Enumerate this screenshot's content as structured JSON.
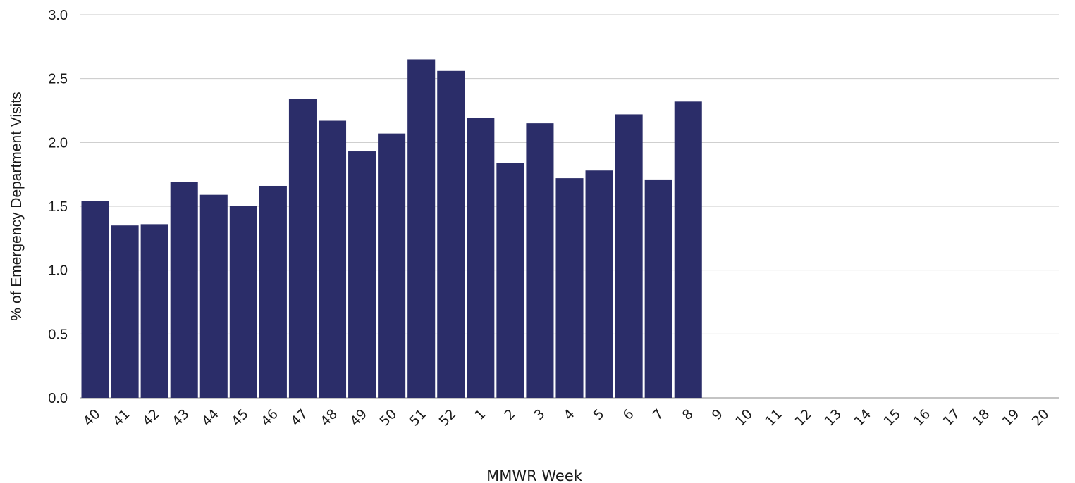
{
  "chart_data": {
    "type": "bar",
    "title": "",
    "xlabel": "MMWR Week",
    "ylabel": "% of Emergency Department Visits",
    "ylim": [
      0,
      3.0
    ],
    "yticks": [
      "0.0",
      "0.5",
      "1.0",
      "1.5",
      "2.0",
      "2.5",
      "3.0"
    ],
    "grid": true,
    "legend": "none",
    "bar_color": "#2b2d69",
    "gridline_color": "#c8c8c8",
    "categories": [
      "40",
      "41",
      "42",
      "43",
      "44",
      "45",
      "46",
      "47",
      "48",
      "49",
      "50",
      "51",
      "52",
      "1",
      "2",
      "3",
      "4",
      "5",
      "6",
      "7",
      "8",
      "9",
      "10",
      "11",
      "12",
      "13",
      "14",
      "15",
      "16",
      "17",
      "18",
      "19",
      "20"
    ],
    "values": [
      1.54,
      1.35,
      1.36,
      1.69,
      1.59,
      1.5,
      1.66,
      2.34,
      2.17,
      1.93,
      2.07,
      2.65,
      2.56,
      2.19,
      1.84,
      2.15,
      1.72,
      1.78,
      2.22,
      1.71,
      2.32,
      null,
      null,
      null,
      null,
      null,
      null,
      null,
      null,
      null,
      null,
      null,
      null
    ]
  }
}
